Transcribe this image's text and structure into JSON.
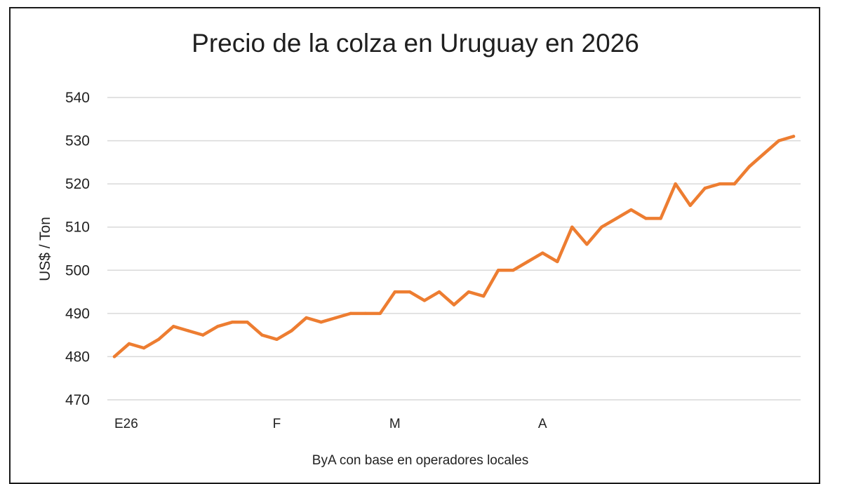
{
  "chart_data": {
    "type": "line",
    "title": "Precio de la colza en Uruguay en 2026",
    "xlabel": "",
    "ylabel": "US$ / Ton",
    "source_note": "ByA con base en operadores locales",
    "ylim": [
      470,
      540
    ],
    "yticks": [
      470,
      480,
      490,
      500,
      510,
      520,
      530,
      540
    ],
    "xtick_labels": [
      {
        "label": "E26",
        "index": 0
      },
      {
        "label": "F",
        "index": 11
      },
      {
        "label": "M",
        "index": 19
      },
      {
        "label": "A",
        "index": 29
      }
    ],
    "grid": true,
    "legend": "none",
    "color": "#ED7D31",
    "series": [
      {
        "values": [
          480,
          483,
          482,
          484,
          487,
          486,
          485,
          487,
          488,
          488,
          485,
          484,
          486,
          489,
          488,
          489,
          490,
          490,
          490,
          495,
          495,
          493,
          495,
          492,
          495,
          494,
          500,
          500,
          502,
          504,
          502,
          510,
          506,
          510,
          512,
          514,
          512,
          512,
          520,
          515,
          519,
          520,
          520,
          524,
          527,
          530,
          531
        ]
      }
    ]
  }
}
